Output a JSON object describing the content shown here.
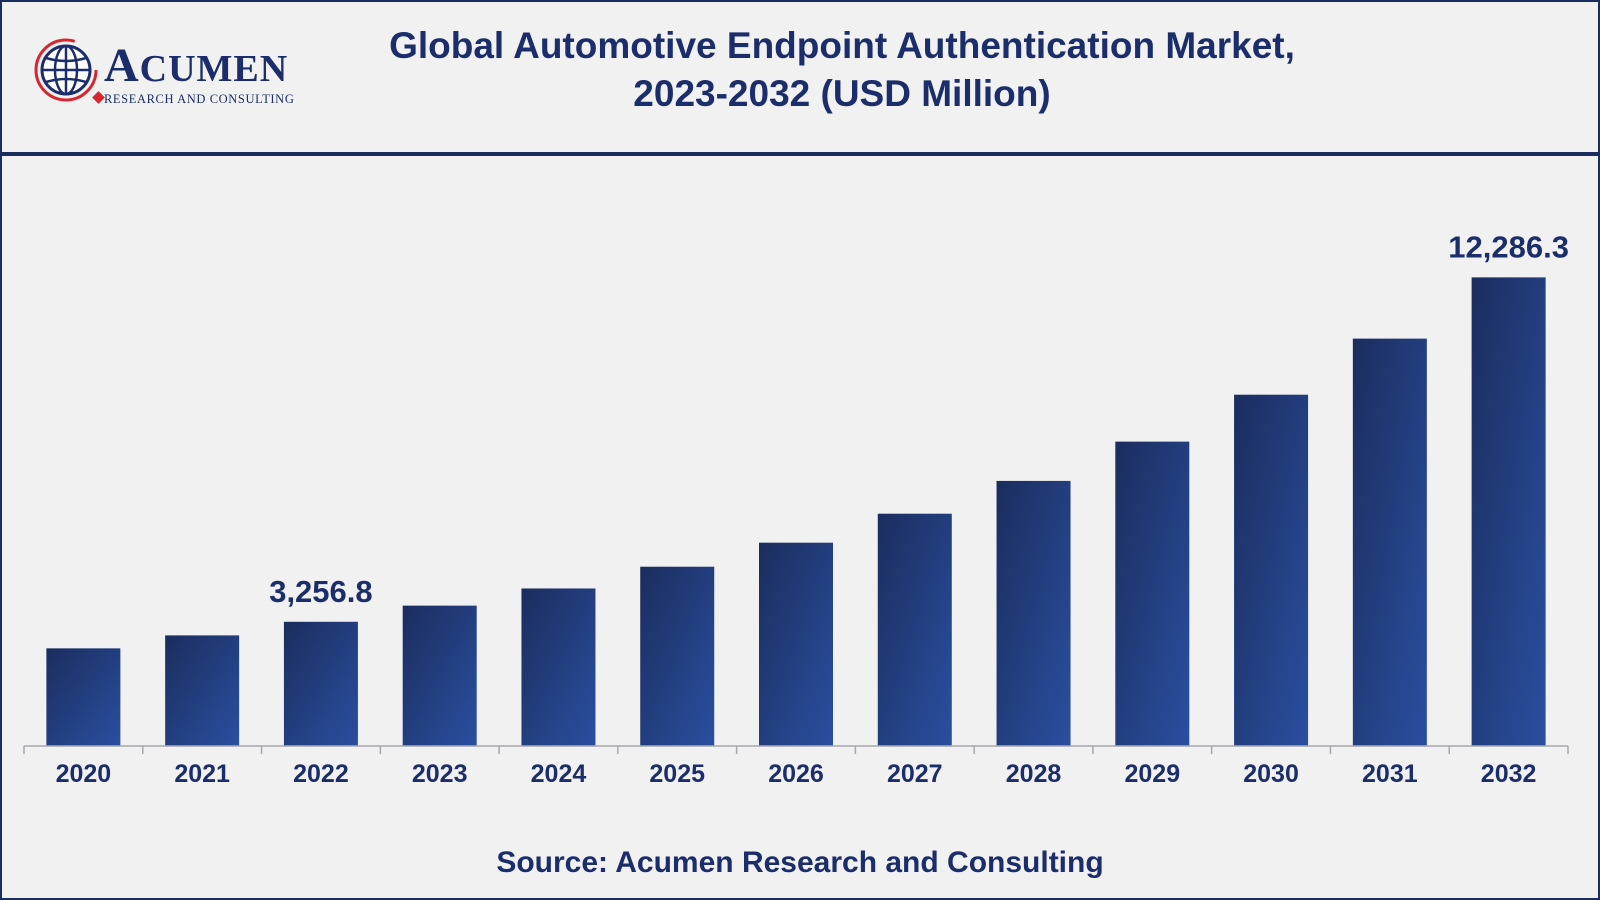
{
  "logo": {
    "name_initial": "A",
    "name_rest": "CUMEN",
    "tagline": "RESEARCH AND CONSULTING"
  },
  "header": {
    "title_line1": "Global Automotive Endpoint Authentication Market,",
    "title_line2": "2023-2032 (USD Million)"
  },
  "footer": {
    "source": "Source: Acumen Research and Consulting"
  },
  "colors": {
    "bar_dark": "#1b2d5e",
    "bar_light": "#2a4fa0",
    "text": "#1b2d6b",
    "accent_red": "#d7262f"
  },
  "chart_data": {
    "type": "bar",
    "title": "Global Automotive Endpoint Authentication Market, 2023-2032 (USD Million)",
    "xlabel": "",
    "ylabel": "",
    "categories": [
      "2020",
      "2021",
      "2022",
      "2023",
      "2024",
      "2025",
      "2026",
      "2027",
      "2028",
      "2029",
      "2030",
      "2031",
      "2032"
    ],
    "values": [
      2560,
      2900,
      3256.8,
      3680,
      4130,
      4700,
      5330,
      6090,
      6950,
      7980,
      9210,
      10680,
      12286.3
    ],
    "data_labels": [
      {
        "category": "2022",
        "text": "3,256.8"
      },
      {
        "category": "2032",
        "text": "12,286.3"
      }
    ],
    "ylim": [
      0,
      14000
    ],
    "grid": false,
    "legend": "none"
  }
}
